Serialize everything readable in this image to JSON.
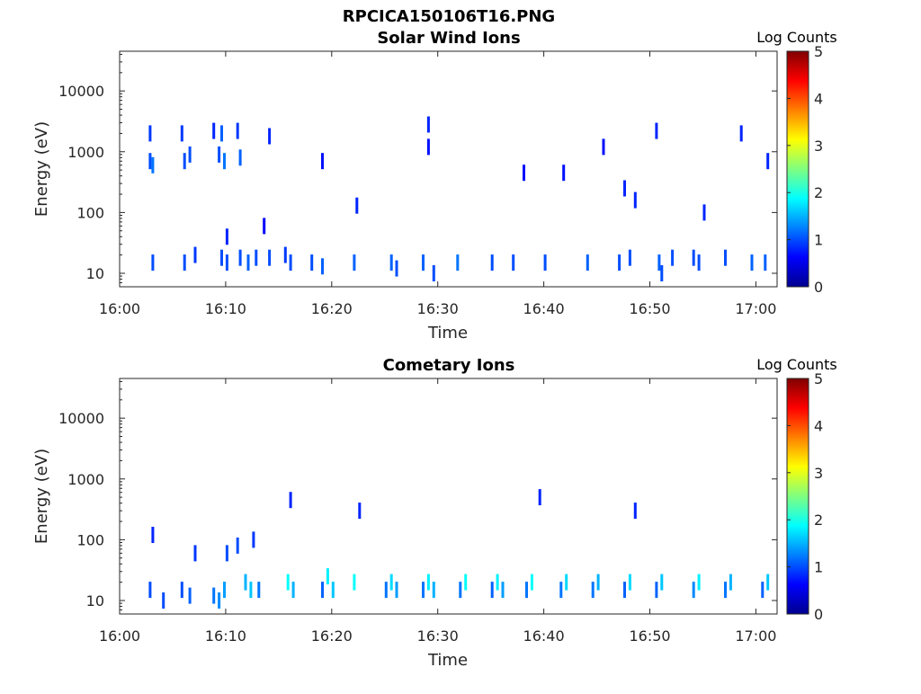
{
  "figure_title": "RPCICA150106T16.PNG",
  "colorbar": {
    "label": "Log Counts",
    "ticks": [
      "5",
      "4",
      "3",
      "2",
      "1",
      "0"
    ],
    "min": 0,
    "max": 5
  },
  "chart_data": [
    {
      "type": "heatmap",
      "title": "Solar Wind Ions",
      "xlabel": "Time",
      "ylabel": "Energy (eV)",
      "x_ticks": [
        "16:00",
        "16:10",
        "16:20",
        "16:30",
        "16:40",
        "16:50",
        "17:00"
      ],
      "y_ticks": [
        "10",
        "100",
        "1000",
        "10000"
      ],
      "y_scale": "log",
      "ylim": [
        6,
        45000
      ],
      "xlim": [
        "16:00",
        "17:02"
      ],
      "points": [
        [
          "16:02:45",
          2000,
          0.9
        ],
        [
          "16:02:45",
          700,
          1.0
        ],
        [
          "16:03:00",
          600,
          1.2
        ],
        [
          "16:03:00",
          15,
          1.0
        ],
        [
          "16:05:45",
          2000,
          0.9
        ],
        [
          "16:06:00",
          700,
          1.0
        ],
        [
          "16:06:00",
          15,
          1.0
        ],
        [
          "16:06:30",
          900,
          1.0
        ],
        [
          "16:07:00",
          20,
          0.9
        ],
        [
          "16:08:45",
          2200,
          0.8
        ],
        [
          "16:09:15",
          900,
          1.0
        ],
        [
          "16:09:30",
          2000,
          1.1
        ],
        [
          "16:09:30",
          18,
          1.0
        ],
        [
          "16:09:45",
          700,
          1.2
        ],
        [
          "16:10:00",
          40,
          0.8
        ],
        [
          "16:10:00",
          15,
          1.0
        ],
        [
          "16:11:00",
          2200,
          0.9
        ],
        [
          "16:11:15",
          800,
          1.1
        ],
        [
          "16:11:15",
          18,
          1.0
        ],
        [
          "16:12:00",
          15,
          1.1
        ],
        [
          "16:12:45",
          18,
          1.0
        ],
        [
          "16:13:30",
          60,
          0.6
        ],
        [
          "16:14:00",
          1800,
          0.8
        ],
        [
          "16:14:00",
          18,
          1.0
        ],
        [
          "16:15:30",
          20,
          0.9
        ],
        [
          "16:16:00",
          15,
          1.0
        ],
        [
          "16:18:00",
          15,
          1.0
        ],
        [
          "16:19:00",
          13,
          1.1
        ],
        [
          "16:19:00",
          700,
          0.7
        ],
        [
          "16:22:00",
          15,
          1.1
        ],
        [
          "16:22:15",
          130,
          0.8
        ],
        [
          "16:25:30",
          15,
          1.1
        ],
        [
          "16:26:00",
          12,
          1.0
        ],
        [
          "16:28:30",
          15,
          1.1
        ],
        [
          "16:29:00",
          2800,
          0.8
        ],
        [
          "16:29:00",
          1200,
          0.7
        ],
        [
          "16:29:30",
          10,
          1.0
        ],
        [
          "16:31:45",
          15,
          1.2
        ],
        [
          "16:35:00",
          15,
          1.0
        ],
        [
          "16:37:00",
          15,
          1.0
        ],
        [
          "16:38:00",
          450,
          0.7
        ],
        [
          "16:40:00",
          15,
          1.0
        ],
        [
          "16:41:45",
          450,
          0.7
        ],
        [
          "16:44:00",
          15,
          1.1
        ],
        [
          "16:45:30",
          1200,
          0.7
        ],
        [
          "16:47:00",
          15,
          1.0
        ],
        [
          "16:47:30",
          250,
          0.8
        ],
        [
          "16:48:00",
          18,
          1.0
        ],
        [
          "16:48:30",
          160,
          0.8
        ],
        [
          "16:50:30",
          2200,
          0.8
        ],
        [
          "16:50:45",
          15,
          1.1
        ],
        [
          "16:51:00",
          10,
          1.0
        ],
        [
          "16:52:00",
          18,
          1.0
        ],
        [
          "16:54:00",
          18,
          1.0
        ],
        [
          "16:54:30",
          15,
          1.0
        ],
        [
          "16:55:00",
          100,
          0.8
        ],
        [
          "16:57:00",
          18,
          1.0
        ],
        [
          "16:58:30",
          2000,
          0.8
        ],
        [
          "16:59:30",
          15,
          1.1
        ],
        [
          "17:00:45",
          15,
          1.1
        ],
        [
          "17:01:00",
          700,
          0.8
        ]
      ]
    },
    {
      "type": "heatmap",
      "title": "Cometary Ions",
      "xlabel": "Time",
      "ylabel": "Energy (eV)",
      "x_ticks": [
        "16:00",
        "16:10",
        "16:20",
        "16:30",
        "16:40",
        "16:50",
        "17:00"
      ],
      "y_ticks": [
        "10",
        "100",
        "1000",
        "10000"
      ],
      "y_scale": "log",
      "ylim": [
        6,
        45000
      ],
      "xlim": [
        "16:00",
        "17:02"
      ],
      "points": [
        [
          "16:02:45",
          15,
          1.0
        ],
        [
          "16:03:00",
          120,
          0.8
        ],
        [
          "16:04:00",
          10,
          1.0
        ],
        [
          "16:05:45",
          15,
          1.0
        ],
        [
          "16:06:30",
          12,
          1.1
        ],
        [
          "16:07:00",
          60,
          0.9
        ],
        [
          "16:08:45",
          12,
          1.2
        ],
        [
          "16:09:15",
          10,
          1.3
        ],
        [
          "16:09:45",
          15,
          1.4
        ],
        [
          "16:10:00",
          60,
          1.0
        ],
        [
          "16:11:00",
          80,
          1.0
        ],
        [
          "16:11:45",
          20,
          1.5
        ],
        [
          "16:12:15",
          15,
          1.6
        ],
        [
          "16:12:30",
          100,
          0.9
        ],
        [
          "16:13:00",
          15,
          1.2
        ],
        [
          "16:15:45",
          20,
          1.9
        ],
        [
          "16:16:15",
          15,
          1.5
        ],
        [
          "16:16:00",
          450,
          0.8
        ],
        [
          "16:19:00",
          15,
          1.1
        ],
        [
          "16:19:30",
          25,
          1.8
        ],
        [
          "16:20:00",
          15,
          1.6
        ],
        [
          "16:22:00",
          20,
          1.9
        ],
        [
          "16:22:30",
          300,
          0.8
        ],
        [
          "16:25:00",
          15,
          1.2
        ],
        [
          "16:25:30",
          20,
          1.7
        ],
        [
          "16:26:00",
          15,
          1.4
        ],
        [
          "16:28:30",
          15,
          1.2
        ],
        [
          "16:29:00",
          20,
          1.8
        ],
        [
          "16:29:30",
          15,
          1.5
        ],
        [
          "16:32:00",
          15,
          1.2
        ],
        [
          "16:32:30",
          20,
          1.9
        ],
        [
          "16:35:00",
          15,
          1.1
        ],
        [
          "16:35:30",
          20,
          1.8
        ],
        [
          "16:36:00",
          15,
          1.4
        ],
        [
          "16:38:15",
          15,
          1.2
        ],
        [
          "16:38:45",
          20,
          1.9
        ],
        [
          "16:39:30",
          500,
          0.8
        ],
        [
          "16:41:30",
          15,
          1.2
        ],
        [
          "16:42:00",
          20,
          1.7
        ],
        [
          "16:44:30",
          15,
          1.2
        ],
        [
          "16:45:00",
          20,
          1.5
        ],
        [
          "16:47:30",
          15,
          1.1
        ],
        [
          "16:48:00",
          20,
          1.7
        ],
        [
          "16:48:30",
          300,
          0.8
        ],
        [
          "16:50:30",
          15,
          1.1
        ],
        [
          "16:51:00",
          20,
          1.6
        ],
        [
          "16:54:00",
          15,
          1.3
        ],
        [
          "16:54:30",
          20,
          1.8
        ],
        [
          "16:57:00",
          15,
          1.2
        ],
        [
          "16:57:30",
          20,
          1.5
        ],
        [
          "17:00:30",
          15,
          1.1
        ],
        [
          "17:01:00",
          20,
          1.6
        ]
      ]
    }
  ]
}
